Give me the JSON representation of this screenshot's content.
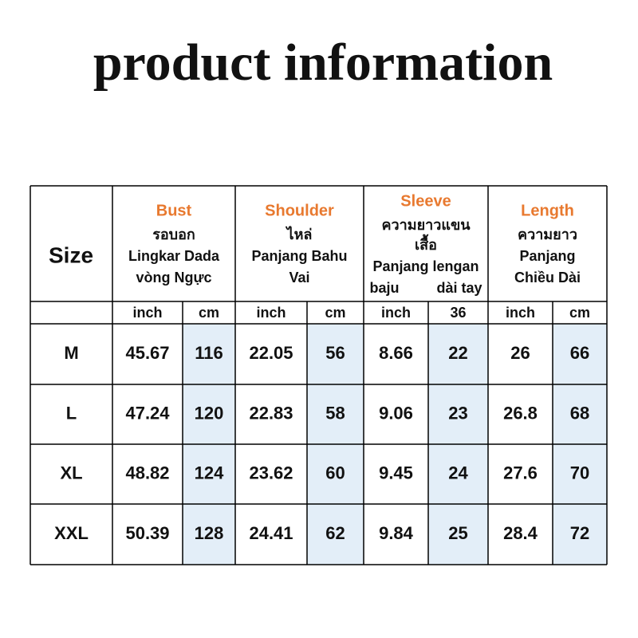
{
  "title": "product information",
  "table": {
    "size_label": "Size",
    "columns": [
      {
        "name": "Bust",
        "lines": [
          "รอบอก",
          "Lingkar Dada",
          "vòng Ngực"
        ]
      },
      {
        "name": "Shoulder",
        "lines": [
          "ไหล่",
          "Panjang Bahu",
          "Vai"
        ]
      },
      {
        "name": "Sleeve",
        "lines": [
          "ความยาวแขน",
          "เสื้อ",
          "Panjang lengan",
          "baju",
          "dài tay"
        ]
      },
      {
        "name": "Length",
        "lines": [
          "ความยาว",
          "Panjang",
          "Chiều Dài"
        ]
      }
    ],
    "units": [
      "inch",
      "cm",
      "inch",
      "cm",
      "inch",
      "36",
      "inch",
      "cm"
    ],
    "rows": [
      [
        "M",
        45.67,
        116,
        22.05,
        56,
        8.66,
        22,
        26,
        66
      ],
      [
        "L",
        47.24,
        120,
        22.83,
        58,
        9.06,
        23,
        26.8,
        68
      ],
      [
        "XL",
        48.82,
        124,
        23.62,
        60,
        9.45,
        24,
        27.6,
        70
      ],
      [
        "XXL",
        50.39,
        128,
        24.41,
        62,
        9.84,
        25,
        28.4,
        72
      ]
    ]
  }
}
